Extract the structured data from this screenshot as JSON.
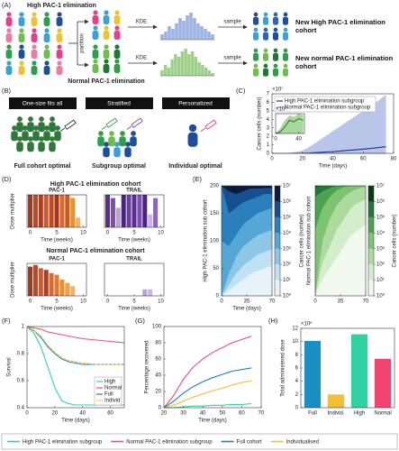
{
  "panel_labels": [
    "(A)",
    "(B)",
    "(C)",
    "(D)",
    "(E)",
    "(F)",
    "(G)",
    "(H)"
  ],
  "panel_a": {
    "high": "High PAC-1 elimination",
    "normal": "Normal PAC-1 elimination",
    "partition": "partition",
    "kde": "KDE",
    "sample": "sample",
    "new_high": "New High PAC-1 elimination cohort",
    "new_normal": "New normal PAC-1 elimination cohort"
  },
  "panel_b": {
    "strategies": [
      {
        "header": "One-size fits all",
        "label": "Full cohort optimal"
      },
      {
        "header": "Stratified",
        "label": "Subgroup optimal"
      },
      {
        "header": "Personalized",
        "label": "Individual optimal"
      }
    ]
  },
  "panel_d": {
    "high_title": "High PAC-1 elimination cohort",
    "normal_title": "Normal PAC-1 elimination cohort"
  },
  "figure_legend": [
    {
      "name": "High PAC-1 elimination subgroup",
      "color": "#2fd3a3"
    },
    {
      "name": "Normal PAC-1 elimination subgroup",
      "color": "#e8507a"
    },
    {
      "name": "Full cohort",
      "color": "#1f7fc0"
    },
    {
      "name": "Individualised",
      "color": "#f2bf35"
    }
  ],
  "chart_data": [
    {
      "type": "bar",
      "color": "#9db4e0",
      "values": [
        2,
        3,
        5,
        4,
        6,
        8,
        7,
        9,
        10,
        8,
        6,
        5,
        4,
        3,
        2
      ]
    },
    {
      "type": "bar",
      "color": "#9fd08a",
      "values": [
        2,
        4,
        3,
        6,
        8,
        7,
        9,
        10,
        8,
        9,
        7,
        5,
        4,
        3,
        2,
        1
      ]
    },
    {
      "type": "line",
      "xlabel": "Time (days)",
      "ylabel": "Cancer cells (number)",
      "y_multiplier": "×10⁷",
      "xlim": [
        0,
        80
      ],
      "xticks": [
        0,
        20,
        40,
        60,
        80
      ],
      "ylim": [
        0,
        7
      ],
      "yticks": [
        0,
        1,
        2,
        3,
        4,
        5,
        6,
        7
      ],
      "legend": "upper left",
      "x": [
        0,
        10,
        20,
        25,
        30,
        35,
        40,
        45,
        50,
        55,
        60,
        65,
        70,
        75
      ],
      "series": [
        {
          "name": "High PAC-1 elimination subgroup",
          "color": "#1f2f8f",
          "band_color": "#b9c6ea",
          "values": [
            0,
            0,
            0.02,
            0.05,
            0.1,
            0.15,
            0.2,
            0.27,
            0.35,
            0.42,
            0.5,
            0.58,
            0.68,
            0.78
          ],
          "band_upper": [
            0,
            0,
            0.3,
            0.8,
            1.4,
            2.0,
            2.6,
            3.2,
            3.8,
            4.4,
            5.0,
            5.6,
            6.2,
            6.9
          ]
        },
        {
          "name": "Normal PAC-1 elimination subgroup",
          "color": "#8aa0d8",
          "values": [
            0,
            0,
            0,
            0,
            0,
            0,
            0,
            0,
            0,
            0,
            0,
            0,
            0,
            0
          ]
        }
      ]
    },
    {
      "type": "line",
      "y_multiplier": "×10³",
      "xlim": [
        0,
        50
      ],
      "xticks": [
        0,
        40
      ],
      "ylim": [
        0,
        12
      ],
      "x": [
        0,
        8,
        16,
        24,
        32,
        40,
        48
      ],
      "series": [
        {
          "color": "#3a7d2a",
          "band_color": "#a8d8a0",
          "values": [
            0,
            1,
            4,
            8,
            7,
            9,
            8
          ],
          "band_upper": [
            0,
            3,
            8,
            11,
            10,
            12,
            11
          ]
        }
      ]
    },
    {
      "type": "bar",
      "title": "PAC-1",
      "xlabel": "Time (weeks)",
      "ylabel": "Dose multiplier",
      "xlim": [
        -0.6,
        10.6
      ],
      "xticks": [
        0,
        5,
        10
      ],
      "ylim": [
        0,
        1
      ],
      "x": [
        0,
        1,
        2,
        3,
        4,
        5,
        6,
        7,
        8,
        9
      ],
      "values": [
        1,
        1,
        1,
        1,
        1,
        1,
        1,
        1,
        0.9,
        0.3
      ],
      "colors": [
        "#a8341c",
        "#c0461f",
        "#b83a1a",
        "#d0582a",
        "#c04a1e",
        "#a8341c",
        "#d86a30",
        "#c85a28",
        "#e8902a",
        "#f0b070"
      ]
    },
    {
      "type": "bar",
      "title": "TRAIL",
      "xlabel": "Time (weeks)",
      "xlim": [
        -0.6,
        10.6
      ],
      "xticks": [
        0,
        5,
        10
      ],
      "ylim": [
        0,
        1
      ],
      "x": [
        0,
        1,
        2,
        3,
        4,
        5,
        6,
        7,
        8,
        9
      ],
      "values": [
        1,
        0.9,
        0.6,
        1,
        1,
        1,
        1,
        1,
        0.4,
        0.9
      ],
      "colors": [
        "#5b2c8f",
        "#7a4fb0",
        "#b9a2dc",
        "#4a2380",
        "#6b3fa0",
        "#5b2c8f",
        "#7a4fb0",
        "#4a2380",
        "#c9b6e6",
        "#8a66c0"
      ]
    },
    {
      "type": "bar",
      "title": "PAC-1",
      "xlabel": "Time (weeks)",
      "ylabel": "Dose multiplier",
      "xlim": [
        -0.6,
        10.6
      ],
      "xticks": [
        0,
        5,
        10
      ],
      "ylim": [
        0,
        1
      ],
      "x": [
        0,
        1,
        2,
        3,
        4,
        5,
        6,
        7,
        8
      ],
      "values": [
        0.9,
        0.95,
        0.85,
        0.8,
        0.7,
        0.65,
        0.5,
        0.4,
        0.3
      ],
      "colors": [
        "#a8341c",
        "#c0461f",
        "#d0582a",
        "#b83a1a",
        "#d86a30",
        "#e07a30",
        "#e8902a",
        "#f0a050",
        "#f0b070"
      ]
    },
    {
      "type": "bar",
      "title": "TRAIL",
      "xlabel": "Time (weeks)",
      "xlim": [
        -0.6,
        10.6
      ],
      "xticks": [
        0,
        5,
        10
      ],
      "ylim": [
        0,
        1
      ],
      "x": [
        0,
        1,
        2,
        3,
        4,
        5,
        6,
        7,
        8,
        9
      ],
      "values": [
        0,
        0,
        0,
        0,
        0,
        0,
        0,
        0.2,
        0.2,
        0
      ],
      "colors": [
        "#c9b6e6",
        "#c9b6e6",
        "#c9b6e6",
        "#c9b6e6",
        "#c9b6e6",
        "#c9b6e6",
        "#c9b6e6",
        "#b9a2dc",
        "#c9b6e6",
        "#c9b6e6"
      ]
    },
    {
      "type": "heatmap",
      "xlabel": "Time (days)",
      "ylabel": "High PAC-1 elimination sub cohort",
      "cbar_label": "Cancer cells (number)",
      "xlim": [
        0,
        70
      ],
      "xticks": [
        0,
        35,
        70
      ],
      "ylim": [
        0,
        200
      ],
      "yticks": [
        0,
        50,
        100,
        150,
        200
      ],
      "x": [
        0,
        10,
        20,
        30,
        40,
        50,
        60,
        70
      ],
      "colors": [
        "#e6f3fa",
        "#bfe1f2",
        "#8cc8e6",
        "#55a8d6",
        "#2a7fbd",
        "#154f8f",
        "#081c3f"
      ],
      "boundaries": [
        [
          0,
          10,
          20,
          30,
          40,
          45,
          50,
          55
        ],
        [
          0,
          20,
          40,
          55,
          65,
          75,
          80,
          85
        ],
        [
          0,
          40,
          70,
          90,
          100,
          110,
          115,
          120
        ],
        [
          100,
          90,
          110,
          130,
          140,
          150,
          155,
          160
        ],
        [
          200,
          150,
          160,
          170,
          175,
          180,
          185,
          185
        ],
        [
          200,
          190,
          185,
          190,
          195,
          195,
          196,
          196
        ]
      ],
      "clim": [
        1,
        10000000
      ],
      "cbar_ticks": [
        {
          "value": 1,
          "label": "10⁰"
        },
        {
          "value": 10,
          "label": "10¹"
        },
        {
          "value": 100,
          "label": "10²"
        },
        {
          "value": 1000,
          "label": "10³"
        },
        {
          "value": 10000,
          "label": "10⁴"
        },
        {
          "value": 100000,
          "label": "10⁵"
        },
        {
          "value": 1000000,
          "label": "10⁶"
        },
        {
          "value": 10000000,
          "label": "10⁷"
        }
      ]
    },
    {
      "type": "heatmap",
      "ylabel": "Normal PAC-1 elimination sub cohort",
      "cbar_label": "Cancer cells (number)",
      "xlim": [
        0,
        70
      ],
      "xticks": [
        0,
        35,
        70
      ],
      "ylim": [
        0,
        200
      ],
      "x": [
        0,
        10,
        20,
        30,
        40,
        50,
        60,
        70
      ],
      "colors": [
        "#f1f9ee",
        "#d3eecb",
        "#abdc9e",
        "#7cc46f",
        "#4aa350",
        "#23773a",
        "#0b3a18"
      ],
      "boundaries": [
        [
          0,
          30,
          50,
          70,
          90,
          110,
          120,
          130
        ],
        [
          0,
          60,
          90,
          120,
          140,
          160,
          170,
          175
        ],
        [
          0,
          100,
          140,
          165,
          180,
          190,
          195,
          198
        ],
        [
          120,
          160,
          180,
          192,
          198,
          200,
          200,
          200
        ],
        [
          180,
          190,
          196,
          200,
          200,
          200,
          200,
          200
        ],
        [
          198,
          200,
          200,
          200,
          200,
          200,
          200,
          200
        ]
      ],
      "clim": [
        1,
        10000000
      ],
      "cbar_ticks": [
        {
          "value": 1,
          "label": "10⁰"
        },
        {
          "value": 10,
          "label": "10¹"
        },
        {
          "value": 100,
          "label": "10²"
        },
        {
          "value": 1000,
          "label": "10³"
        },
        {
          "value": 10000,
          "label": "10⁴"
        },
        {
          "value": 100000,
          "label": "10⁵"
        },
        {
          "value": 1000000,
          "label": "10⁶"
        },
        {
          "value": 10000000,
          "label": "10⁷"
        }
      ]
    },
    {
      "type": "line",
      "xlabel": "Time (days)",
      "ylabel": "Survival",
      "xlim": [
        0,
        70
      ],
      "xticks": [
        0,
        20,
        40,
        60
      ],
      "ylim": [
        0.4,
        1
      ],
      "yticks": [
        0.4,
        0.6,
        0.8,
        1
      ],
      "legend": "lower right",
      "x": [
        0,
        5,
        10,
        15,
        20,
        25,
        30,
        35,
        40,
        50,
        60,
        70
      ],
      "series": [
        {
          "name": "High",
          "color": "#2fd3a3",
          "values": [
            1,
            0.95,
            0.85,
            0.7,
            0.55,
            0.45,
            0.43,
            0.42,
            0.42,
            0.42,
            0.42,
            0.42
          ]
        },
        {
          "name": "Normal",
          "color": "#e8507a",
          "values": [
            1,
            0.99,
            0.98,
            0.96,
            0.95,
            0.94,
            0.93,
            0.92,
            0.91,
            0.9,
            0.89,
            0.88
          ]
        },
        {
          "name": "Full",
          "color": "#1f7fc0",
          "values": [
            1,
            0.97,
            0.92,
            0.85,
            0.8,
            0.76,
            0.74,
            0.73,
            0.72,
            0.72,
            0.72,
            0.72
          ]
        },
        {
          "name": "Individ",
          "color": "#f2bf35",
          "dash": true,
          "values": [
            1,
            0.97,
            0.93,
            0.86,
            0.81,
            0.77,
            0.75,
            0.74,
            0.73,
            0.72,
            0.72,
            0.72
          ]
        }
      ]
    },
    {
      "type": "line",
      "xlabel": "Time (days)",
      "ylabel": "Percentage recovered",
      "xlim": [
        20,
        70
      ],
      "xticks": [
        20,
        30,
        40,
        50,
        60,
        70
      ],
      "ylim": [
        0,
        100
      ],
      "yticks": [
        0,
        20,
        40,
        60,
        80,
        100
      ],
      "x": [
        20,
        25,
        30,
        35,
        40,
        45,
        50,
        55,
        60,
        65
      ],
      "series": [
        {
          "color": "#e8507a",
          "values": [
            0,
            15,
            35,
            50,
            60,
            68,
            74,
            80,
            84,
            88
          ]
        },
        {
          "color": "#1f7fc0",
          "values": [
            0,
            8,
            18,
            26,
            32,
            37,
            41,
            45,
            47,
            49
          ]
        },
        {
          "color": "#f2bf35",
          "values": [
            0,
            3,
            8,
            13,
            17,
            21,
            24,
            28,
            31,
            33
          ]
        },
        {
          "color": "#2fd3a3",
          "values": [
            0,
            0,
            1,
            2,
            2,
            3,
            3,
            4,
            4,
            5
          ]
        }
      ]
    },
    {
      "type": "bar",
      "ylabel": "Total administered dose",
      "y_multiplier": "×10⁶",
      "categories": [
        "Full",
        "Individ.",
        "High",
        "Normal"
      ],
      "values": [
        10.1,
        2.0,
        11.1,
        7.4
      ],
      "colors": [
        "#1a8fc4",
        "#f2bf35",
        "#2fd3a3",
        "#f0436e"
      ],
      "ylim": [
        0,
        12
      ],
      "yticks": [
        0,
        2,
        4,
        6,
        8,
        10,
        12
      ]
    }
  ]
}
